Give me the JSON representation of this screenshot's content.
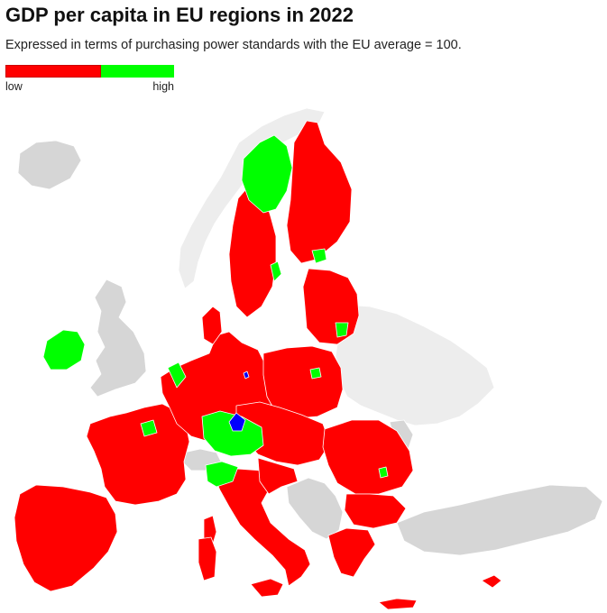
{
  "title": "GDP per capita in EU regions in 2022",
  "subtitle": "Expressed in terms of purchasing power standards with the EU average = 100.",
  "legend": {
    "low_label": "low",
    "high_label": "high",
    "colors": {
      "low": "#ff0000",
      "high": "#00ff00",
      "low_border": "#cc0000"
    }
  },
  "map_colors": {
    "below_average": "#ff0000",
    "above_average": "#00ff00",
    "highlight": "#0000ff",
    "non_eu_land": "#d6d6d6",
    "non_eu_far": "#ededed",
    "region_border": "#ffffff"
  }
}
